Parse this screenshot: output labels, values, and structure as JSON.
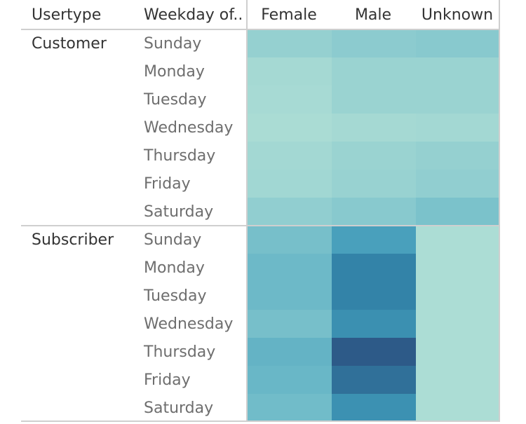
{
  "chart_data": {
    "type": "heatmap",
    "row_header": "Usertype",
    "sub_header": "Weekday of..",
    "columns": [
      "Female",
      "Male",
      "Unknown"
    ],
    "groups": [
      {
        "name": "Customer",
        "days": [
          "Sunday",
          "Monday",
          "Tuesday",
          "Wednesday",
          "Thursday",
          "Friday",
          "Saturday"
        ],
        "values": [
          [
            0.15,
            0.19,
            0.21
          ],
          [
            0.08,
            0.13,
            0.13
          ],
          [
            0.07,
            0.13,
            0.13
          ],
          [
            0.06,
            0.08,
            0.09
          ],
          [
            0.09,
            0.13,
            0.15
          ],
          [
            0.1,
            0.14,
            0.17
          ],
          [
            0.17,
            0.21,
            0.27
          ]
        ]
      },
      {
        "name": "Subscriber",
        "days": [
          "Sunday",
          "Monday",
          "Tuesday",
          "Wednesday",
          "Thursday",
          "Friday",
          "Saturday"
        ],
        "values": [
          [
            0.29,
            0.55,
            0.05
          ],
          [
            0.34,
            0.77,
            0.05
          ],
          [
            0.34,
            0.77,
            0.05
          ],
          [
            0.29,
            0.68,
            0.05
          ],
          [
            0.39,
            1.0,
            0.05
          ],
          [
            0.36,
            0.88,
            0.05
          ],
          [
            0.32,
            0.67,
            0.05
          ]
        ]
      }
    ],
    "color_scale": [
      "#b7e3d7",
      "#7fc4cc",
      "#4ea6c0",
      "#3487ab",
      "#2d5a88"
    ]
  }
}
